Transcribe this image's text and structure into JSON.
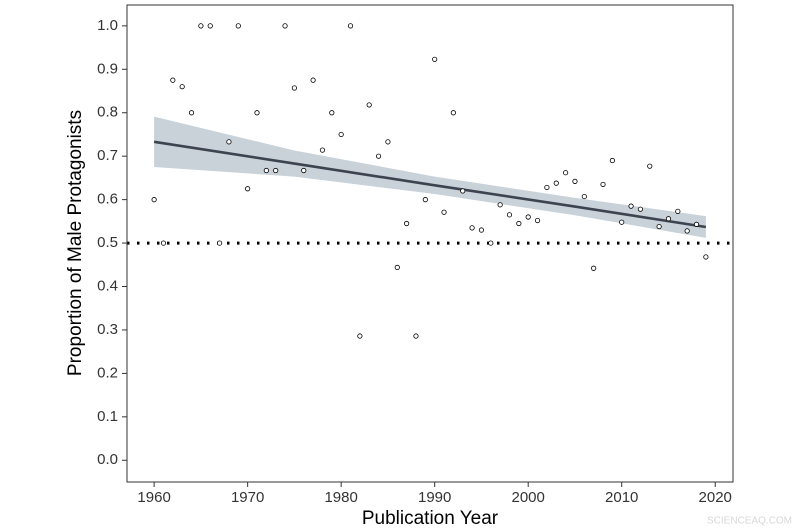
{
  "chart_data": {
    "type": "scatter",
    "xlabel": "Publication Year",
    "ylabel": "Proportion of Male Protagonists",
    "x": [
      1960,
      1961,
      1962,
      1963,
      1964,
      1965,
      1966,
      1967,
      1968,
      1969,
      1970,
      1971,
      1972,
      1973,
      1974,
      1975,
      1976,
      1977,
      1978,
      1979,
      1980,
      1981,
      1982,
      1983,
      1984,
      1985,
      1986,
      1987,
      1988,
      1989,
      1990,
      1991,
      1992,
      1993,
      1994,
      1995,
      1996,
      1997,
      1998,
      1999,
      2000,
      2001,
      2002,
      2003,
      2004,
      2005,
      2006,
      2007,
      2008,
      2009,
      2010,
      2011,
      2012,
      2013,
      2014,
      2015,
      2016,
      2017,
      2018,
      2019
    ],
    "values": [
      0.6,
      0.5,
      0.875,
      0.86,
      0.8,
      1.0,
      1.0,
      0.5,
      0.733,
      1.0,
      0.625,
      0.8,
      0.667,
      0.667,
      1.0,
      0.857,
      0.667,
      0.875,
      0.714,
      0.8,
      0.75,
      1.0,
      0.286,
      0.818,
      0.7,
      0.733,
      0.444,
      0.545,
      0.286,
      0.6,
      0.923,
      0.571,
      0.8,
      0.62,
      0.535,
      0.53,
      0.5,
      0.588,
      0.565,
      0.545,
      0.56,
      0.552,
      0.628,
      0.638,
      0.662,
      0.642,
      0.607,
      0.442,
      0.635,
      0.69,
      0.548,
      0.585,
      0.578,
      0.677,
      0.538,
      0.556,
      0.573,
      0.528,
      0.543,
      0.468
    ],
    "color": "#000000",
    "fit": {
      "x": [
        1960,
        1975,
        1990,
        2005,
        2019
      ],
      "values": [
        0.733,
        0.683,
        0.633,
        0.584,
        0.537
      ],
      "lower": [
        0.675,
        0.653,
        0.613,
        0.564,
        0.512
      ],
      "upper": [
        0.791,
        0.713,
        0.653,
        0.604,
        0.562
      ],
      "color": "#3d4450",
      "band_color": "#c9d1d9"
    },
    "hline": 0.5,
    "xlim": [
      1957.1,
      2021.9
    ],
    "ylim": [
      -0.05,
      1.048
    ],
    "xticks": [
      1960,
      1970,
      1980,
      1990,
      2000,
      2010,
      2020
    ],
    "yticks": [
      {
        "value": 0,
        "label": "0.0"
      },
      0.1,
      0.2,
      0.3,
      0.4,
      0.5,
      0.6,
      0.7,
      0.8,
      0.9,
      {
        "value": 1,
        "label": "1.0"
      }
    ],
    "grid": false
  },
  "watermark": "SCIENCEAQ.COM"
}
